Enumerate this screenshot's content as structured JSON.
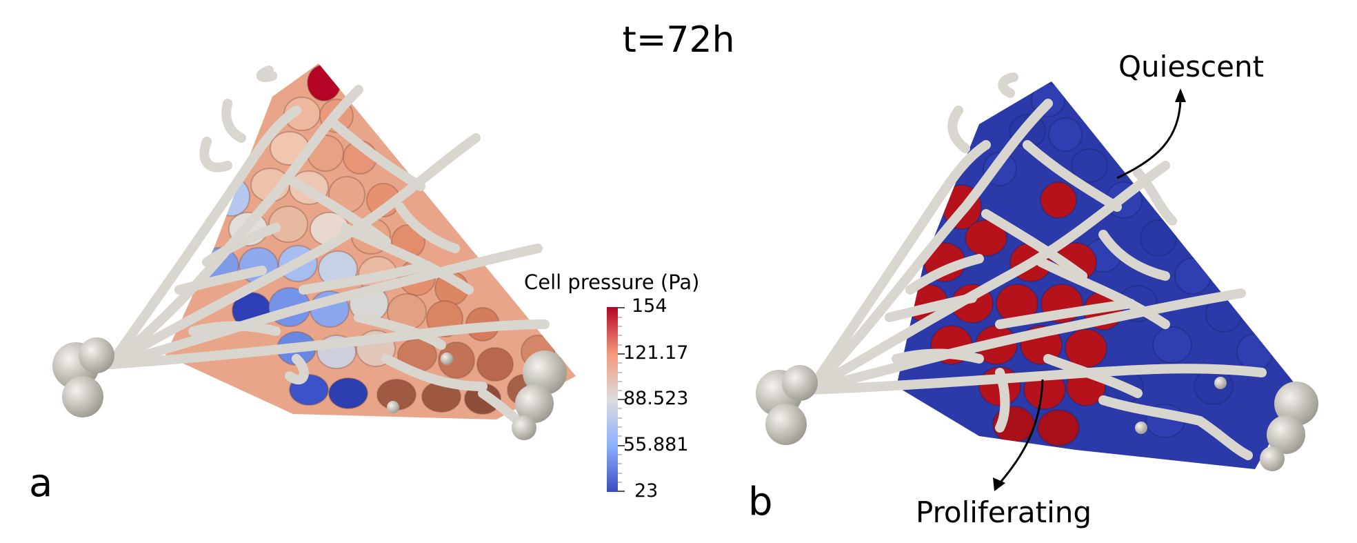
{
  "title": "t=72h",
  "panels": {
    "a": {
      "label": "a"
    },
    "b": {
      "label": "b"
    }
  },
  "colorbar": {
    "title": "Cell pressure (Pa)",
    "min": 23,
    "max": 154,
    "tick_labels": [
      "154",
      "121.17",
      "88.523",
      "55.881",
      "23"
    ],
    "colormap": [
      "#3b4cc0",
      "#8db0fe",
      "#dddcdc",
      "#f4987a",
      "#b40426"
    ]
  },
  "annotations": {
    "quiescent": "Quiescent",
    "proliferating": "Proliferating"
  },
  "colors": {
    "quiescent": "#2b3aa8",
    "proliferating": "#b5121b",
    "vessel": "#d9d6cf"
  }
}
